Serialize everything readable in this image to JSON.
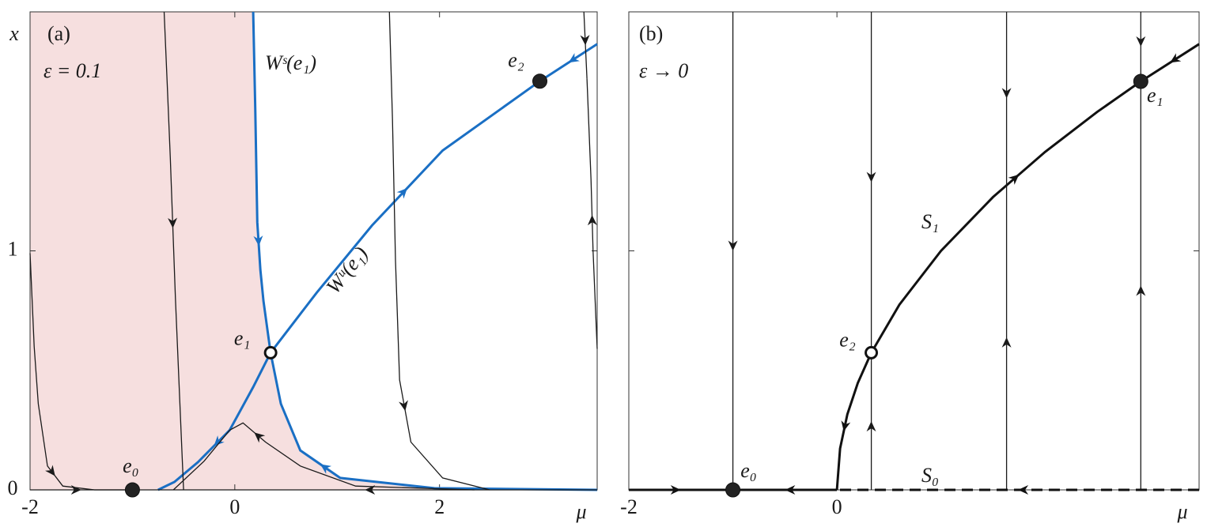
{
  "chart_data": [
    {
      "type": "phase",
      "panel_label": "(a)",
      "xlabel": "μ",
      "ylabel": "x",
      "xlim": [
        -2,
        3.54
      ],
      "ylim": [
        0,
        2
      ],
      "xticks": [
        -2,
        0,
        2
      ],
      "yticks": [
        0,
        1
      ],
      "ytick_labels": true,
      "shade_color": "#f6dfdf",
      "annotations": [
        {
          "text": "ε = 0.1",
          "color": "#1a1a1a"
        },
        {
          "text": "Wˢ(e₁)",
          "color": "#1a6fc4"
        },
        {
          "text": "Wᵘ(e₁)",
          "color": "#1a6fc4"
        }
      ],
      "curves": [
        {
          "color": "#1a6fc4",
          "width": "thick",
          "shade": true,
          "x": [
            0.18,
            0.2,
            0.22,
            0.25,
            0.28,
            0.35
          ],
          "y": [
            2.0,
            1.6,
            1.12,
            0.92,
            0.79,
            0.574
          ]
        },
        {
          "color": "#1a6fc4",
          "width": "thick",
          "shade": true,
          "x": [
            3.54,
            1.95,
            1.03,
            0.64,
            0.45,
            0.35
          ],
          "y": [
            0,
            0.007,
            0.05,
            0.165,
            0.36,
            0.574
          ]
        },
        {
          "color": "#1a6fc4",
          "width": "thick",
          "x": [
            0.35,
            0.8,
            1.34,
            2.03,
            2.98
          ],
          "y": [
            0.574,
            0.825,
            1.106,
            1.42,
            1.71
          ]
        },
        {
          "color": "#1a6fc4",
          "width": "thick",
          "x": [
            3.54,
            2.98
          ],
          "y": [
            1.865,
            1.71
          ]
        },
        {
          "color": "#1a6fc4",
          "width": "thick",
          "x": [
            0.35,
            0.18,
            -0.05,
            -0.36,
            -0.59,
            -0.75
          ],
          "y": [
            0.574,
            0.43,
            0.25,
            0.116,
            0.033,
            0
          ]
        },
        {
          "color": "#1a1a1a",
          "width": "thin",
          "x": [
            -2,
            -1.96,
            -1.92,
            -1.83,
            -1.68,
            -1.37,
            -1
          ],
          "y": [
            0.99,
            0.6,
            0.36,
            0.1,
            0.016,
            0,
            0
          ]
        },
        {
          "color": "#1a1a1a",
          "width": "thin",
          "x": [
            -0.69,
            -0.66,
            -0.63,
            -0.58,
            -0.52,
            -0.5
          ],
          "y": [
            2.0,
            1.7,
            1.39,
            0.8,
            0.2,
            0
          ]
        },
        {
          "color": "#1a1a1a",
          "width": "thin",
          "x": [
            2.34,
            1.18,
            0.64,
            0.3,
            0.08,
            -0.05,
            -0.3,
            -0.6
          ],
          "y": [
            0,
            0.016,
            0.1,
            0.2,
            0.28,
            0.25,
            0.12,
            0
          ]
        },
        {
          "color": "#1a1a1a",
          "width": "thin",
          "x": [
            1.51,
            1.54,
            1.57,
            1.61,
            1.72,
            2.03,
            2.49
          ],
          "y": [
            2.0,
            1.55,
            0.96,
            0.46,
            0.2,
            0.05,
            0
          ]
        },
        {
          "color": "#1a1a1a",
          "width": "thin",
          "x": [
            3.54,
            -1
          ],
          "y": [
            0,
            0
          ]
        },
        {
          "color": "#1a1a1a",
          "width": "thin",
          "x": [
            -2,
            -1
          ],
          "y": [
            0,
            0
          ]
        },
        {
          "color": "#1a1a1a",
          "width": "thin",
          "x": [
            3.54,
            3.5,
            3.48,
            3.44
          ],
          "y": [
            0.59,
            1.0,
            1.3,
            1.72
          ]
        },
        {
          "color": "#1a1a1a",
          "width": "thin",
          "x": [
            3.41,
            3.44
          ],
          "y": [
            2.0,
            1.72
          ]
        }
      ],
      "points": [
        {
          "label": "e₀",
          "x": -1,
          "y": 0,
          "filled": true
        },
        {
          "label": "e₁",
          "x": 0.35,
          "y": 0.574,
          "filled": false
        },
        {
          "label": "e₂",
          "x": 2.98,
          "y": 1.71,
          "filled": true
        }
      ]
    },
    {
      "type": "phase",
      "panel_label": "(b)",
      "xlabel": "μ",
      "xlim": [
        -2,
        3.48
      ],
      "ylim": [
        0,
        2
      ],
      "xticks": [
        -2,
        0
      ],
      "yticks": [
        0,
        1
      ],
      "ytick_labels": false,
      "annotations": [
        {
          "text": "ε → 0",
          "color": "#1a1a1a"
        },
        {
          "text": "S₁",
          "color": "#1a1a1a"
        },
        {
          "text": "S₀",
          "color": "#1a1a1a"
        }
      ],
      "curves": [
        {
          "color": "#111111",
          "width": "thick",
          "x": [
            0.33,
            0.2,
            0.1,
            0.03,
            0
          ],
          "y": [
            0.574,
            0.447,
            0.316,
            0.173,
            0
          ]
        },
        {
          "color": "#111111",
          "width": "thick",
          "x": [
            0.33,
            0.6,
            1.0,
            1.5,
            2.0,
            2.5,
            2.92
          ],
          "y": [
            0.574,
            0.775,
            1,
            1.225,
            1.414,
            1.581,
            1.709
          ]
        },
        {
          "color": "#111111",
          "width": "thick",
          "x": [
            3.48,
            2.92
          ],
          "y": [
            1.865,
            1.709
          ]
        },
        {
          "color": "#1a1a1a",
          "width": "thin",
          "x": [
            -1,
            -1
          ],
          "y": [
            2,
            0
          ]
        },
        {
          "color": "#1a1a1a",
          "width": "thin",
          "x": [
            0.33,
            0.33
          ],
          "y": [
            2,
            0.574
          ]
        },
        {
          "color": "#1a1a1a",
          "width": "thin",
          "x": [
            0.33,
            0.33
          ],
          "y": [
            0,
            0.574
          ]
        },
        {
          "color": "#1a1a1a",
          "width": "thin",
          "x": [
            1.63,
            1.63
          ],
          "y": [
            2,
            1.277
          ]
        },
        {
          "color": "#1a1a1a",
          "width": "thin",
          "x": [
            1.63,
            1.63
          ],
          "y": [
            0,
            1.277
          ]
        },
        {
          "color": "#1a1a1a",
          "width": "thin",
          "x": [
            2.92,
            2.92
          ],
          "y": [
            2,
            1.709
          ]
        },
        {
          "color": "#1a1a1a",
          "width": "thin",
          "x": [
            2.92,
            2.92
          ],
          "y": [
            0,
            1.709
          ]
        },
        {
          "color": "#111111",
          "width": "thick",
          "x": [
            -2,
            -1
          ],
          "y": [
            0,
            0
          ]
        },
        {
          "color": "#111111",
          "width": "thick",
          "x": [
            0,
            -1
          ],
          "y": [
            0,
            0
          ]
        },
        {
          "color": "#111111",
          "width": "thick",
          "dashed": true,
          "x": [
            3.48,
            0
          ],
          "y": [
            0,
            0
          ]
        }
      ],
      "points": [
        {
          "label": "e₀",
          "x": -1,
          "y": 0,
          "filled": true
        },
        {
          "label": "e₂",
          "x": 0.33,
          "y": 0.574,
          "filled": false
        },
        {
          "label": "e₁",
          "x": 2.92,
          "y": 1.709,
          "filled": true
        }
      ]
    }
  ]
}
